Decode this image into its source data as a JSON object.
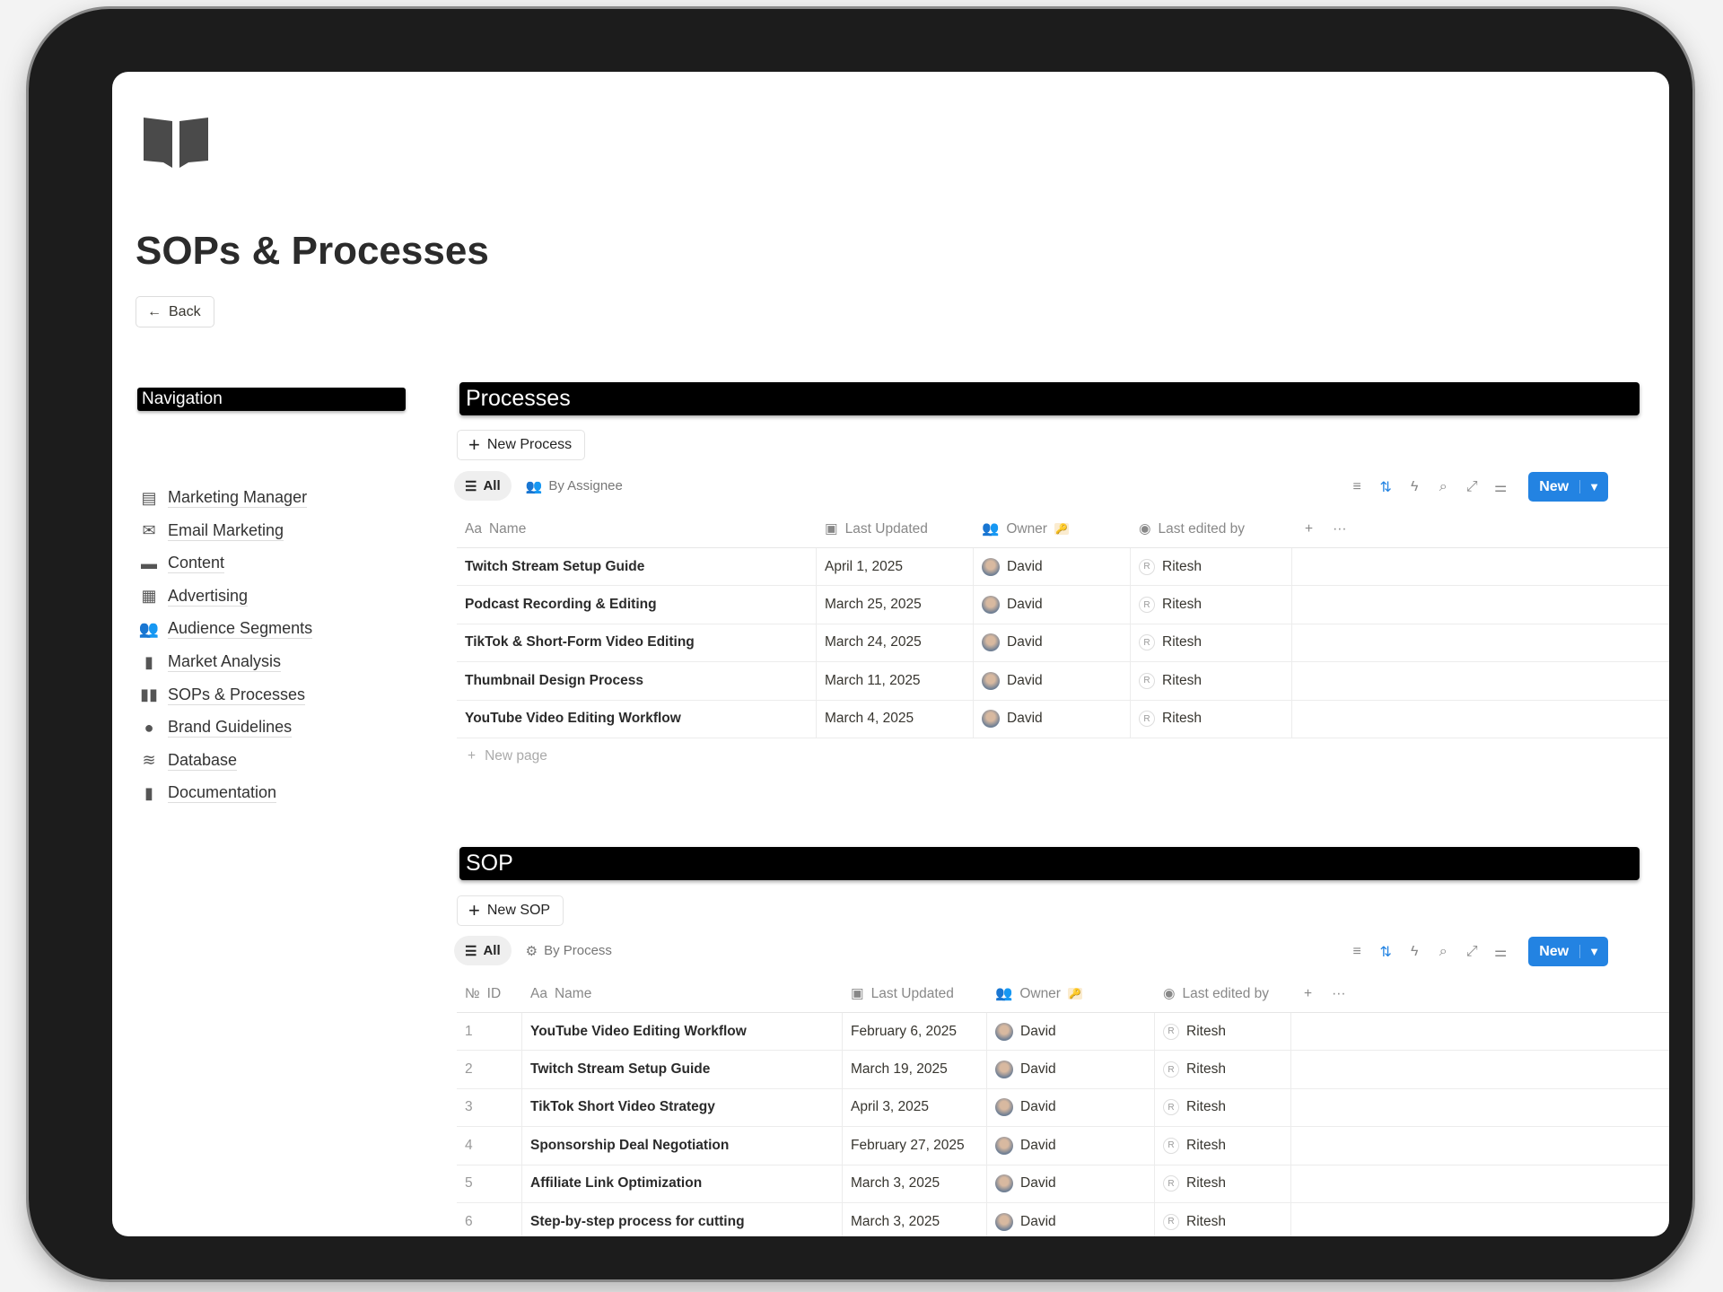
{
  "page": {
    "title": "SOPs & Processes",
    "back_label": "Back",
    "icon": "book-open-icon"
  },
  "navigation": {
    "header": "Navigation",
    "items": [
      {
        "label": "Marketing Manager",
        "icon": "kanban-icon"
      },
      {
        "label": "Email Marketing",
        "icon": "envelope-open-icon"
      },
      {
        "label": "Content",
        "icon": "clapperboard-icon"
      },
      {
        "label": "Advertising",
        "icon": "film-icon"
      },
      {
        "label": "Audience Segments",
        "icon": "people-group-icon"
      },
      {
        "label": "Market Analysis",
        "icon": "clipboard-icon"
      },
      {
        "label": "SOPs & Processes",
        "icon": "book-icon"
      },
      {
        "label": "Brand Guidelines",
        "icon": "palette-icon"
      },
      {
        "label": "Database",
        "icon": "database-icon"
      },
      {
        "label": "Documentation",
        "icon": "document-icon"
      }
    ]
  },
  "processes": {
    "header": "Processes",
    "new_button": "New Process",
    "tabs": [
      "All",
      "By Assignee"
    ],
    "new_label": "New",
    "accent": "#2383e2",
    "columns": [
      "Name",
      "Last Updated",
      "Owner",
      "Last edited by"
    ],
    "rows": [
      [
        "Twitch Stream Setup Guide",
        "April 1, 2025",
        "David",
        "Ritesh"
      ],
      [
        "Podcast Recording & Editing",
        "March 25, 2025",
        "David",
        "Ritesh"
      ],
      [
        "TikTok & Short-Form Video Editing",
        "March 24, 2025",
        "David",
        "Ritesh"
      ],
      [
        "Thumbnail Design Process",
        "March 11, 2025",
        "David",
        "Ritesh"
      ],
      [
        "YouTube Video Editing Workflow",
        "March 4, 2025",
        "David",
        "Ritesh"
      ]
    ],
    "new_page": "New page"
  },
  "sop": {
    "header": "SOP",
    "new_button": "New SOP",
    "tabs": [
      "All",
      "By Process"
    ],
    "new_label": "New",
    "columns": [
      "ID",
      "Name",
      "Last Updated",
      "Owner",
      "Last edited by"
    ],
    "rows": [
      [
        "1",
        "YouTube Video Editing Workflow",
        "February 6, 2025",
        "David",
        "Ritesh"
      ],
      [
        "2",
        "Twitch Stream Setup Guide",
        "March 19, 2025",
        "David",
        "Ritesh"
      ],
      [
        "3",
        "TikTok Short Video Strategy",
        "April 3, 2025",
        "David",
        "Ritesh"
      ],
      [
        "4",
        "Sponsorship Deal Negotiation",
        "February 27, 2025",
        "David",
        "Ritesh"
      ],
      [
        "5",
        "Affiliate Link Optimization",
        "March 3, 2025",
        "David",
        "Ritesh"
      ],
      [
        "6",
        "Step-by-step process for cutting",
        "March 3, 2025",
        "David",
        "Ritesh"
      ]
    ]
  },
  "avatar_initial": "R"
}
